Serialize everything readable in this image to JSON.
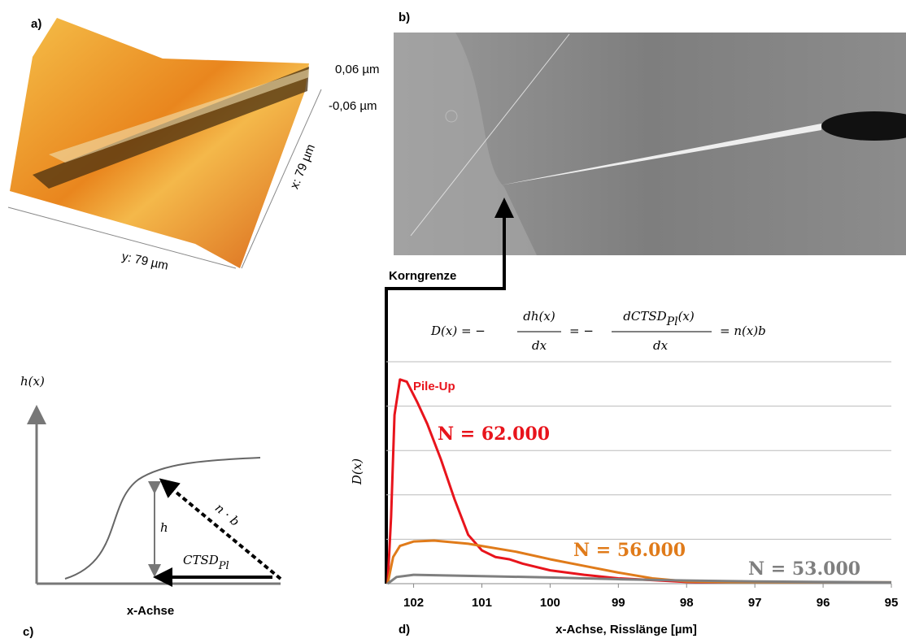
{
  "panel_a": {
    "label": "a)",
    "z_top": "0,06 µm",
    "z_bottom": "-0,06 µm",
    "x_size": "x: 79 µm",
    "y_size": "y: 79 µm"
  },
  "panel_b": {
    "label": "b)",
    "arrow_label": "Korngrenze"
  },
  "panel_c": {
    "label": "c)",
    "y_label": "h(x)",
    "height": "h",
    "slope": "n · b",
    "ctsd": "CTSD",
    "ctsd_sub": "Pl",
    "x_label": "x-Achse"
  },
  "panel_d": {
    "label": "d)",
    "formula": {
      "lhs": "D(x) = −",
      "num1": "dh(x)",
      "den1": "dx",
      "mid": "= −",
      "num2": "dCTSD",
      "num2_sub": "Pl",
      "num2_tail": "(x)",
      "den2": "dx",
      "rhs": "= n(x)b"
    },
    "annotation": "Pile-Up"
  },
  "chart_data": {
    "type": "line",
    "y_label": "D(x)",
    "x_label": "x-Achse, Risslänge [µm]",
    "xlim": [
      102.4,
      95
    ],
    "xticks": [
      102,
      101,
      100,
      99,
      98,
      97,
      96,
      95
    ],
    "ylim": [
      0,
      5
    ],
    "yticks": [
      0,
      1,
      2,
      3,
      4,
      5
    ],
    "grid": true,
    "series": [
      {
        "name": "N = 62.000",
        "color": "#e8141c",
        "x": [
          102.38,
          102.33,
          102.28,
          102.2,
          102.1,
          101.95,
          101.8,
          101.6,
          101.4,
          101.2,
          101.0,
          100.8,
          100.6,
          100.4,
          100.0,
          99.5,
          99.0,
          98.0,
          97.0,
          95.0
        ],
        "values": [
          0,
          1.5,
          3.8,
          4.6,
          4.55,
          4.1,
          3.6,
          2.8,
          1.9,
          1.1,
          0.75,
          0.6,
          0.55,
          0.45,
          0.3,
          0.2,
          0.12,
          0.04,
          0.02,
          0.02
        ]
      },
      {
        "name": "N = 56.000",
        "color": "#e07b1a",
        "x": [
          102.38,
          102.3,
          102.2,
          102.0,
          101.7,
          101.2,
          100.5,
          100.0,
          99.5,
          99.0,
          98.5,
          98.0,
          97.0,
          95.0
        ],
        "values": [
          0,
          0.6,
          0.85,
          0.95,
          0.97,
          0.9,
          0.72,
          0.55,
          0.4,
          0.25,
          0.12,
          0.05,
          0.03,
          0.03
        ]
      },
      {
        "name": "N = 53.000",
        "color": "#7f7f7f",
        "x": [
          102.38,
          102.25,
          102.0,
          101.0,
          100.0,
          99.0,
          98.0,
          97.0,
          96.0,
          95.0
        ],
        "values": [
          0,
          0.15,
          0.2,
          0.17,
          0.14,
          0.1,
          0.07,
          0.05,
          0.04,
          0.03
        ]
      }
    ]
  }
}
